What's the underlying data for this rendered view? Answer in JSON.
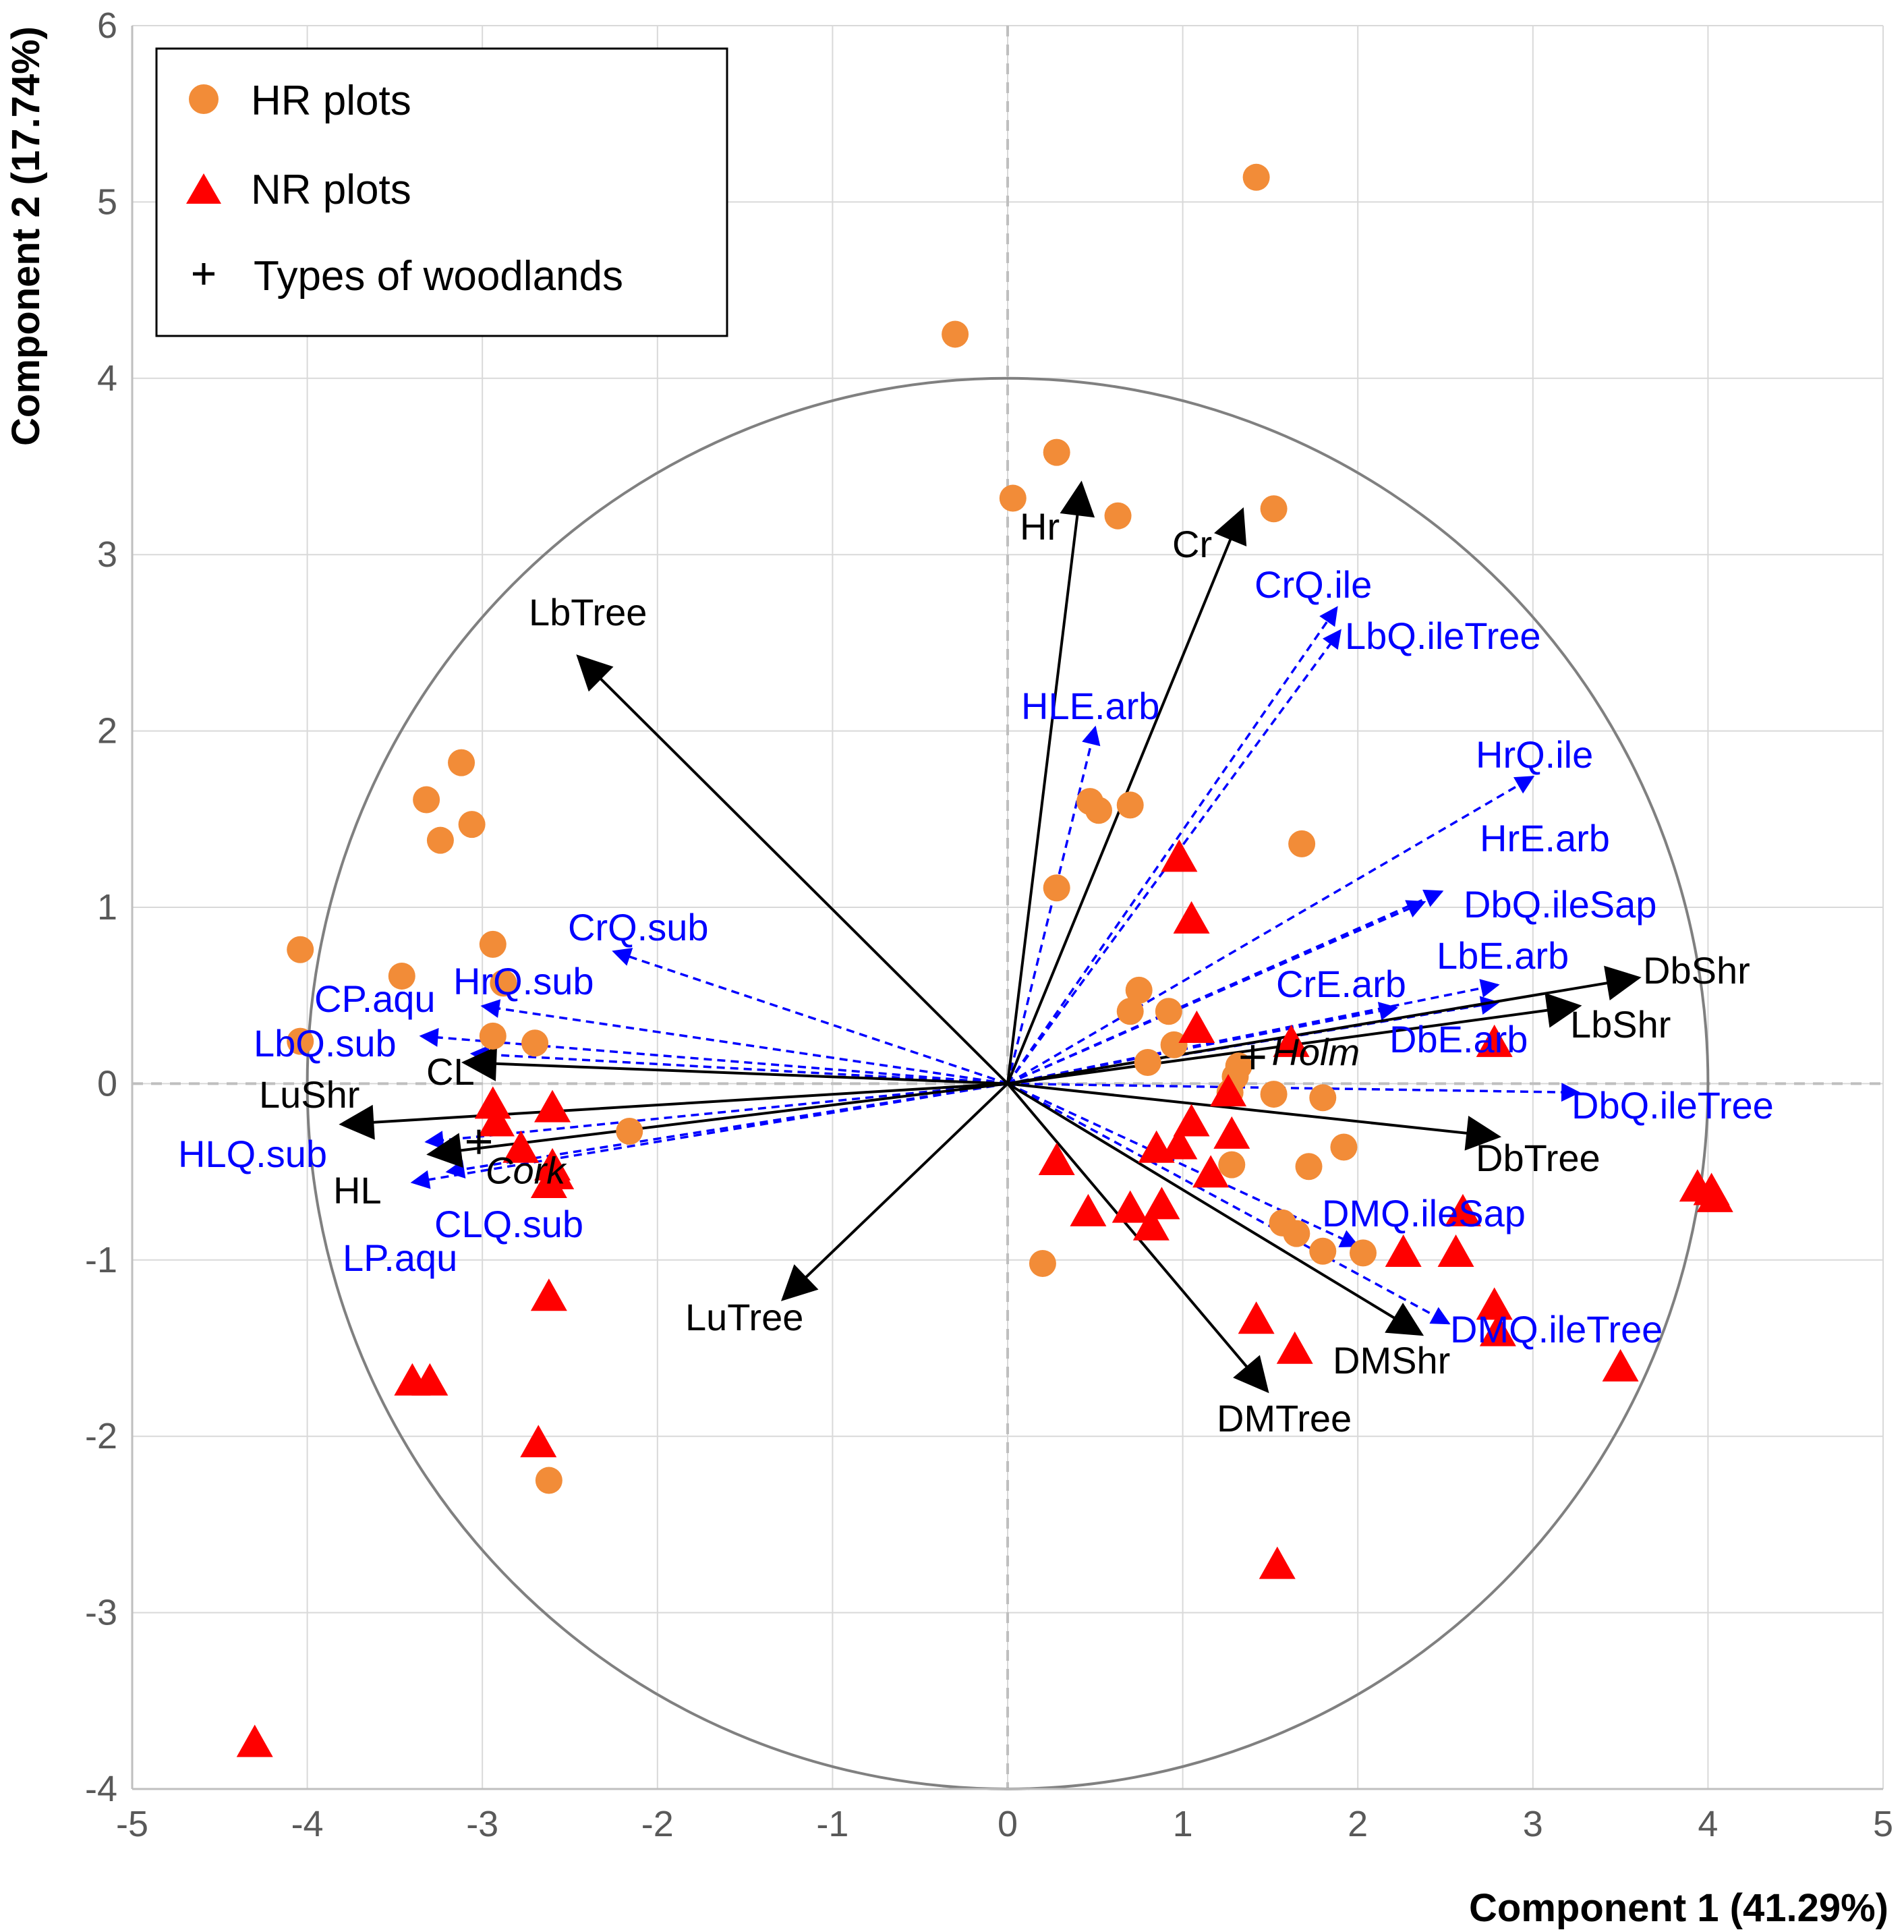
{
  "chart_data": {
    "type": "scatter",
    "subtype": "PCA biplot",
    "xlabel": "Component 1 (41.29%)",
    "ylabel": "Component 2 (17.74%)",
    "xlim": [
      -5,
      5
    ],
    "ylim": [
      -4,
      6
    ],
    "x_ticks": [
      "-5",
      "-4",
      "-3",
      "-2",
      "-1",
      "0",
      "1",
      "2",
      "3",
      "4",
      "5"
    ],
    "y_ticks": [
      "-4",
      "-3",
      "-2",
      "-1",
      "0",
      "1",
      "2",
      "3",
      "4",
      "5",
      "6"
    ],
    "grid": true,
    "circle_radius": 4,
    "legend": {
      "position": "top-left",
      "entries": [
        {
          "key": "hr",
          "label": "HR plots",
          "color": "#F28C38",
          "marker": "circle"
        },
        {
          "key": "nr",
          "label": "NR plots",
          "color": "#FF0000",
          "marker": "triangle"
        },
        {
          "key": "wood",
          "label": "Types of woodlands",
          "color": "#000000",
          "marker": "plus"
        }
      ]
    },
    "series": [
      {
        "name": "HR plots",
        "marker": "circle",
        "color": "#F28C38",
        "points": [
          [
            1.42,
            5.14
          ],
          [
            -0.3,
            4.25
          ],
          [
            0.28,
            3.58
          ],
          [
            0.03,
            3.32
          ],
          [
            0.63,
            3.22
          ],
          [
            1.52,
            3.26
          ],
          [
            -3.12,
            1.82
          ],
          [
            -3.32,
            1.61
          ],
          [
            -3.06,
            1.47
          ],
          [
            -3.24,
            1.38
          ],
          [
            -4.04,
            0.76
          ],
          [
            -3.46,
            0.61
          ],
          [
            -2.94,
            0.79
          ],
          [
            -2.88,
            0.57
          ],
          [
            -2.94,
            0.27
          ],
          [
            -2.7,
            0.23
          ],
          [
            -4.04,
            0.24
          ],
          [
            -2.16,
            -0.27
          ],
          [
            0.47,
            1.6
          ],
          [
            0.52,
            1.55
          ],
          [
            0.7,
            1.58
          ],
          [
            0.28,
            1.11
          ],
          [
            1.68,
            1.36
          ],
          [
            0.75,
            0.53
          ],
          [
            0.7,
            0.41
          ],
          [
            0.92,
            0.41
          ],
          [
            0.95,
            0.22
          ],
          [
            0.8,
            0.12
          ],
          [
            1.3,
            0.04
          ],
          [
            1.32,
            0.1
          ],
          [
            1.27,
            -0.05
          ],
          [
            1.52,
            -0.06
          ],
          [
            1.8,
            -0.08
          ],
          [
            1.28,
            -0.46
          ],
          [
            1.72,
            -0.47
          ],
          [
            1.92,
            -0.36
          ],
          [
            1.57,
            -0.79
          ],
          [
            1.65,
            -0.85
          ],
          [
            1.8,
            -0.95
          ],
          [
            2.03,
            -0.96
          ],
          [
            0.2,
            -1.02
          ],
          [
            -2.62,
            -2.25
          ]
        ]
      },
      {
        "name": "NR plots",
        "marker": "triangle",
        "color": "#FF0000",
        "points": [
          [
            0.98,
            1.27
          ],
          [
            1.05,
            0.92
          ],
          [
            1.08,
            0.3
          ],
          [
            1.62,
            0.22
          ],
          [
            2.78,
            0.22
          ],
          [
            -2.94,
            -0.13
          ],
          [
            -2.6,
            -0.15
          ],
          [
            -2.92,
            -0.23
          ],
          [
            -2.78,
            -0.38
          ],
          [
            -2.6,
            -0.48
          ],
          [
            -2.58,
            -0.53
          ],
          [
            -2.62,
            -0.58
          ],
          [
            -2.62,
            -1.22
          ],
          [
            -3.4,
            -1.7
          ],
          [
            -3.3,
            -1.7
          ],
          [
            -2.68,
            -2.05
          ],
          [
            -4.3,
            -3.75
          ],
          [
            0.28,
            -0.45
          ],
          [
            0.46,
            -0.74
          ],
          [
            0.7,
            -0.72
          ],
          [
            0.82,
            -0.82
          ],
          [
            0.88,
            -0.7
          ],
          [
            0.85,
            -0.38
          ],
          [
            0.98,
            -0.36
          ],
          [
            1.05,
            -0.23
          ],
          [
            1.16,
            -0.52
          ],
          [
            1.28,
            -0.3
          ],
          [
            1.26,
            -0.06
          ],
          [
            1.42,
            -1.35
          ],
          [
            1.64,
            -1.52
          ],
          [
            2.26,
            -0.97
          ],
          [
            2.56,
            -0.97
          ],
          [
            2.6,
            -0.74
          ],
          [
            2.78,
            -1.27
          ],
          [
            2.8,
            -1.42
          ],
          [
            3.5,
            -1.62
          ],
          [
            3.94,
            -0.6
          ],
          [
            4.02,
            -0.62
          ],
          [
            4.04,
            -0.66
          ],
          [
            1.54,
            -2.74
          ]
        ]
      }
    ],
    "woodland_types": [
      {
        "label": "Holm",
        "x": 1.4,
        "y": 0.15
      },
      {
        "label": "Cork",
        "x": -3.02,
        "y": -0.33
      }
    ],
    "loading_vectors_main": [
      {
        "label": "Hr",
        "x": 0.42,
        "y": 3.4
      },
      {
        "label": "Cr",
        "x": 1.34,
        "y": 3.25
      },
      {
        "label": "LbTree",
        "x": -2.45,
        "y": 2.42
      },
      {
        "label": "LuTree",
        "x": -1.28,
        "y": -1.22
      },
      {
        "label": "CL",
        "x": -3.1,
        "y": 0.12
      },
      {
        "label": "LuShr",
        "x": -3.8,
        "y": -0.23
      },
      {
        "label": "HL",
        "x": -3.3,
        "y": -0.4
      },
      {
        "label": "DbShr",
        "x": 3.6,
        "y": 0.6
      },
      {
        "label": "LbShr",
        "x": 3.26,
        "y": 0.44
      },
      {
        "label": "DbTree",
        "x": 2.8,
        "y": -0.3
      },
      {
        "label": "DMShr",
        "x": 2.36,
        "y": -1.42
      },
      {
        "label": "DMTree",
        "x": 1.48,
        "y": -1.74
      }
    ],
    "loading_vectors_species": [
      {
        "label": "CrQ.ile",
        "x": 1.88,
        "y": 2.7
      },
      {
        "label": "LbQ.ileTree",
        "x": 1.9,
        "y": 2.57
      },
      {
        "label": "HLE.arb",
        "x": 0.5,
        "y": 2.02
      },
      {
        "label": "HrQ.ile",
        "x": 3.0,
        "y": 1.74
      },
      {
        "label": "HrE.arb",
        "x": 2.48,
        "y": 1.09
      },
      {
        "label": "DbQ.ileSap",
        "x": 2.38,
        "y": 1.03
      },
      {
        "label": "LbE.arb",
        "x": 2.8,
        "y": 0.56
      },
      {
        "label": "CrE.arb",
        "x": 2.22,
        "y": 0.43
      },
      {
        "label": "DbE.arb",
        "x": 2.8,
        "y": 0.46
      },
      {
        "label": "DbQ.ileTree",
        "x": 3.26,
        "y": -0.05
      },
      {
        "label": "DMQ.ileSap",
        "x": 2.0,
        "y": -0.92
      },
      {
        "label": "DMQ.ileTree",
        "x": 2.52,
        "y": -1.36
      },
      {
        "label": "CrQ.sub",
        "x": -2.25,
        "y": 0.75
      },
      {
        "label": "HrQ.sub",
        "x": -3.0,
        "y": 0.44
      },
      {
        "label": "CP.aqu",
        "x": -3.06,
        "y": 0.17
      },
      {
        "label": "LbQ.sub",
        "x": -3.35,
        "y": 0.27
      },
      {
        "label": "HLQ.sub",
        "x": -3.32,
        "y": -0.33
      },
      {
        "label": "LP.aqu",
        "x": -3.4,
        "y": -0.56
      },
      {
        "label": "CLQ.sub",
        "x": -3.2,
        "y": -0.5
      }
    ],
    "vector_colors": {
      "main": "#000000",
      "species": "#0000FF",
      "circle": "#808080",
      "grid": "#D9D9D9",
      "zero_line": "#BFBFBF"
    }
  }
}
